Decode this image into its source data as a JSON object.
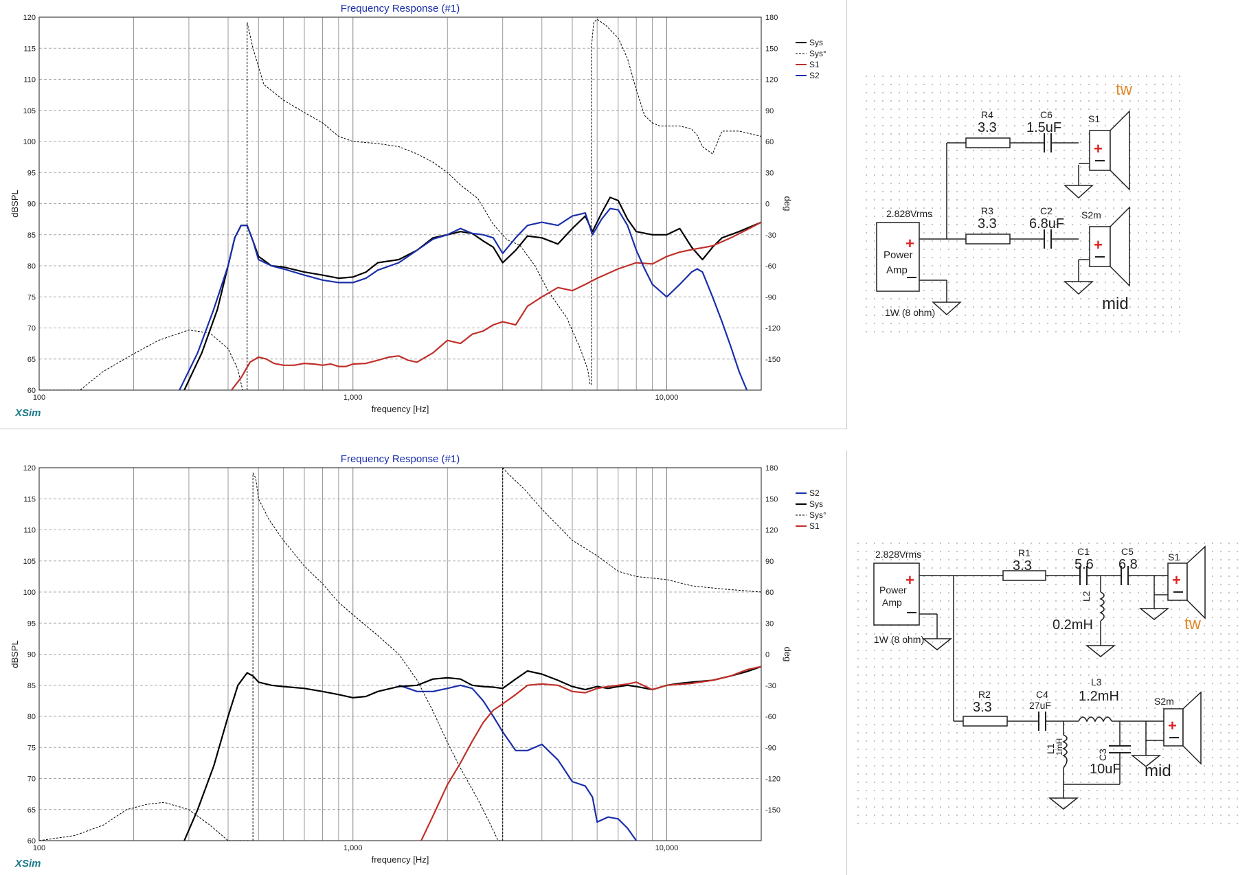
{
  "chart_data": [
    {
      "type": "line",
      "title": "Frequency Response (#1)",
      "xlabel": "frequency [Hz]",
      "ylabel": "dBSPL",
      "y2label": "deg",
      "watermark": "XSim",
      "xscale": "log",
      "xlim": [
        100,
        20000
      ],
      "ylim": [
        60,
        120
      ],
      "y2lim": [
        -180,
        180
      ],
      "xticks": [
        "100",
        "1,000",
        "10,000"
      ],
      "yticks": [
        "60",
        "65",
        "70",
        "75",
        "80",
        "85",
        "90",
        "95",
        "100",
        "105",
        "110",
        "115",
        "120"
      ],
      "y2ticks": [
        "-150",
        "-120",
        "-90",
        "-60",
        "-30",
        "0",
        "30",
        "60",
        "90",
        "120",
        "150",
        "180"
      ],
      "grid": true,
      "legend_position": "top-right",
      "legend": [
        "Sys",
        "Sys°",
        "S1",
        "S2"
      ],
      "series": [
        {
          "name": "Sys",
          "color": "#000000",
          "style": "solid",
          "axis": "left",
          "x": [
            290,
            330,
            370,
            400,
            420,
            440,
            460,
            480,
            500,
            550,
            600,
            700,
            800,
            900,
            1000,
            1100,
            1200,
            1400,
            1600,
            1800,
            2000,
            2200,
            2400,
            2600,
            2800,
            3000,
            3300,
            3600,
            4000,
            4500,
            5000,
            5500,
            5800,
            6200,
            6600,
            7000,
            7500,
            8000,
            9000,
            10000,
            11000,
            12000,
            13000,
            14000,
            15000,
            17000,
            20000
          ],
          "y": [
            60,
            66,
            73,
            80,
            84.5,
            86.5,
            86.5,
            84,
            81.5,
            80,
            79.8,
            79,
            78.5,
            78,
            78.2,
            79,
            80.5,
            81,
            82.5,
            84.5,
            85,
            85.5,
            85.2,
            84,
            83,
            80.5,
            82.5,
            84.8,
            84.5,
            83.5,
            86,
            88,
            85.5,
            88.5,
            91,
            90.5,
            87.5,
            85.5,
            85,
            85,
            86,
            83,
            81,
            83,
            84.5,
            85.5,
            87
          ]
        },
        {
          "name": "Sys°",
          "color": "#000000",
          "style": "dashed",
          "axis": "right",
          "x": [
            100,
            135,
            160,
            200,
            240,
            300,
            350,
            400,
            430,
            445,
            455,
            460,
            480,
            520,
            600,
            700,
            800,
            900,
            1000,
            1200,
            1400,
            1600,
            1800,
            2000,
            2200,
            2500,
            2800,
            3100,
            3400,
            3800,
            4200,
            4800,
            5300,
            5600,
            5700,
            5750,
            5850,
            6000,
            6400,
            7000,
            7500,
            8000,
            8500,
            9000,
            9500,
            10000,
            11000,
            12000,
            12500,
            13000,
            14000,
            15000,
            17000,
            20000
          ],
          "y": [
            -180,
            -180,
            -162,
            -145,
            -132,
            -122,
            -125,
            -140,
            -160,
            -180,
            -180,
            175,
            150,
            115,
            100,
            88,
            78,
            65,
            60,
            58,
            55,
            48,
            40,
            30,
            18,
            5,
            -20,
            -35,
            -40,
            -60,
            -85,
            -110,
            -140,
            -160,
            -175,
            150,
            175,
            178,
            172,
            160,
            140,
            110,
            85,
            78,
            75,
            75,
            75,
            72,
            66,
            55,
            48,
            70,
            70,
            65
          ]
        },
        {
          "name": "S1",
          "color": "#c0302a",
          "style": "solid",
          "axis": "left",
          "x": [
            410,
            440,
            470,
            500,
            530,
            560,
            600,
            650,
            700,
            750,
            800,
            850,
            900,
            950,
            1000,
            1100,
            1200,
            1300,
            1400,
            1500,
            1600,
            1800,
            2000,
            2200,
            2400,
            2600,
            2800,
            3000,
            3300,
            3600,
            4000,
            4500,
            5000,
            5500,
            6000,
            7000,
            8000,
            9000,
            10000,
            11000,
            12000,
            14000,
            16000,
            18000,
            20000
          ],
          "y": [
            60,
            62,
            64.5,
            65.3,
            65,
            64.3,
            64,
            64,
            64.3,
            64.2,
            64,
            64.2,
            63.8,
            63.8,
            64.2,
            64.3,
            64.8,
            65.3,
            65.5,
            64.8,
            64.5,
            66,
            68,
            67.5,
            69,
            69.5,
            70.5,
            71,
            70.5,
            73.5,
            75,
            76.5,
            76,
            77,
            78,
            79.5,
            80.5,
            80.3,
            81.5,
            82.2,
            82.6,
            83.2,
            84.5,
            85.8,
            87
          ]
        },
        {
          "name": "S2",
          "color": "#1a2faa",
          "style": "solid",
          "axis": "left",
          "x": [
            280,
            320,
            360,
            400,
            420,
            440,
            460,
            480,
            500,
            550,
            600,
            700,
            800,
            900,
            1000,
            1100,
            1200,
            1400,
            1600,
            1800,
            2000,
            2200,
            2400,
            2600,
            2800,
            3000,
            3300,
            3600,
            4000,
            4500,
            5000,
            5500,
            5800,
            6200,
            6600,
            7000,
            7500,
            8000,
            8500,
            9000,
            10000,
            11000,
            12000,
            12500,
            13000,
            14000,
            15000,
            16000,
            17000,
            18000
          ],
          "y": [
            60,
            66,
            73,
            80,
            84.5,
            86.5,
            86.5,
            84,
            81,
            80,
            79.5,
            78.5,
            77.7,
            77.3,
            77.3,
            78,
            79.3,
            80.5,
            82.5,
            84.3,
            85,
            86,
            85.2,
            85,
            84.5,
            82,
            84.5,
            86.5,
            87,
            86.5,
            88,
            88.5,
            85,
            87.5,
            89.2,
            89,
            86.5,
            82.5,
            79.5,
            77,
            75,
            77,
            79,
            79.5,
            79,
            75,
            71,
            67,
            63,
            60
          ]
        }
      ]
    },
    {
      "type": "line",
      "title": "Frequency Response (#1)",
      "xlabel": "frequency [Hz]",
      "ylabel": "dBSPL",
      "y2label": "deg",
      "watermark": "XSim",
      "xscale": "log",
      "xlim": [
        100,
        20000
      ],
      "ylim": [
        60,
        120
      ],
      "y2lim": [
        -180,
        180
      ],
      "xticks": [
        "100",
        "1,000",
        "10,000"
      ],
      "yticks": [
        "60",
        "65",
        "70",
        "75",
        "80",
        "85",
        "90",
        "95",
        "100",
        "105",
        "110",
        "115",
        "120"
      ],
      "y2ticks": [
        "-150",
        "-120",
        "-90",
        "-60",
        "-30",
        "0",
        "30",
        "60",
        "90",
        "120",
        "150",
        "180"
      ],
      "grid": true,
      "legend_position": "top-right",
      "legend": [
        "S2",
        "Sys",
        "Sys°",
        "S1"
      ],
      "series": [
        {
          "name": "S2",
          "color": "#1a2faa",
          "style": "solid",
          "axis": "left",
          "x": [
            1400,
            1500,
            1600,
            1800,
            2000,
            2200,
            2400,
            2600,
            2800,
            3000,
            3300,
            3600,
            4000,
            4500,
            5000,
            5500,
            5800,
            6000,
            6500,
            7000,
            7500,
            8000
          ],
          "y": [
            85,
            84.5,
            84,
            84,
            84.5,
            85,
            84.5,
            82.5,
            80,
            77.5,
            74.5,
            74.5,
            75.5,
            73,
            69.5,
            68.8,
            67,
            63,
            63.8,
            63.5,
            62,
            60
          ]
        },
        {
          "name": "Sys",
          "color": "#000000",
          "style": "solid",
          "axis": "left",
          "x": [
            290,
            320,
            360,
            400,
            430,
            460,
            480,
            500,
            550,
            600,
            700,
            800,
            900,
            1000,
            1100,
            1200,
            1400,
            1600,
            1800,
            2000,
            2200,
            2400,
            2600,
            2800,
            3000,
            3300,
            3600,
            4000,
            4500,
            5000,
            5500,
            6000,
            6500,
            7000,
            7500,
            8000,
            9000,
            10000,
            11000,
            12000,
            14000,
            16000,
            18000,
            20000
          ],
          "y": [
            60,
            65,
            72,
            80,
            85,
            87,
            86.5,
            85.5,
            85,
            84.8,
            84.5,
            84,
            83.5,
            83,
            83.2,
            84,
            84.8,
            85,
            86,
            86.2,
            86,
            85,
            84.8,
            84.7,
            84.5,
            86,
            87.3,
            86.8,
            85.8,
            84.8,
            84.3,
            84.8,
            84.5,
            84.8,
            85,
            84.8,
            84.3,
            85,
            85.3,
            85.5,
            85.8,
            86.5,
            87.2,
            88
          ]
        },
        {
          "name": "Sys°",
          "color": "#000000",
          "style": "dashed",
          "axis": "right",
          "x": [
            100,
            130,
            160,
            190,
            220,
            250,
            300,
            350,
            400,
            440,
            470,
            480,
            490,
            500,
            540,
            600,
            700,
            800,
            900,
            1000,
            1200,
            1400,
            1600,
            1800,
            2000,
            2200,
            2500,
            2800,
            2900,
            2950,
            3000,
            3100,
            3500,
            4000,
            5000,
            6000,
            7000,
            8000,
            10000,
            12000,
            15000,
            20000
          ],
          "y": [
            -180,
            -175,
            -165,
            -150,
            -145,
            -143,
            -150,
            -165,
            -180,
            -180,
            -180,
            175,
            170,
            150,
            130,
            110,
            85,
            68,
            50,
            38,
            18,
            0,
            -25,
            -55,
            -85,
            -110,
            -140,
            -170,
            -180,
            -180,
            180,
            175,
            160,
            140,
            110,
            95,
            80,
            75,
            72,
            66,
            63,
            60
          ]
        },
        {
          "name": "S1",
          "color": "#c0302a",
          "style": "solid",
          "axis": "left",
          "x": [
            1650,
            1800,
            2000,
            2200,
            2400,
            2600,
            2800,
            3000,
            3300,
            3600,
            4000,
            4500,
            5000,
            5500,
            6000,
            6500,
            7000,
            7500,
            8000,
            9000,
            10000,
            12000,
            14000,
            16000,
            18000,
            20000
          ],
          "y": [
            60,
            64,
            69,
            72.5,
            76,
            79,
            81,
            82,
            83.5,
            85,
            85.2,
            85,
            84,
            83.8,
            84.5,
            84.8,
            85,
            85.2,
            85.5,
            84.3,
            85,
            85.3,
            85.8,
            86.5,
            87.5,
            88
          ]
        }
      ]
    }
  ],
  "schematics": {
    "top": {
      "tw_label": "tw",
      "mid_label": "mid",
      "source_voltage": "2.828Vrms",
      "source_label_1": "Power",
      "source_label_2": "Amp",
      "source_rating": "1W (8 ohm)",
      "r4_ref": "R4",
      "r4_value": "3.3",
      "c6_ref": "C6",
      "c6_value": "1.5uF",
      "s1_ref": "S1",
      "r3_ref": "R3",
      "r3_value": "3.3",
      "c2_ref": "C2",
      "c2_value": "6.8uF",
      "s2_ref": "S2m",
      "plus": "+"
    },
    "bottom": {
      "source_voltage": "2.828Vrms",
      "source_label_1": "Power",
      "source_label_2": "Amp",
      "source_rating": "1W (8 ohm)",
      "r1_ref": "R1",
      "r1_value": "3.3",
      "c1_ref": "C1",
      "c1_value": "5.6",
      "c5_ref": "C5",
      "c5_value": "6.8",
      "s1_ref": "S1",
      "l2_ref": "L2",
      "l2_value": "0.2mH",
      "tw_label": "tw",
      "r2_ref": "R2",
      "r2_value": "3.3",
      "c4_ref": "C4",
      "c4_value": "27uF",
      "l3_ref": "L3",
      "l3_value": "1.2mH",
      "s2_ref": "S2m",
      "l1_ref": "L1",
      "l1_value": "1mH",
      "c3_ref": "C3",
      "c3_value": "10uF",
      "mid_label": "mid",
      "plus": "+"
    }
  },
  "colors": {
    "title": "#1a2faa",
    "watermark": "#1a7a8a",
    "label_orange": "#e08a2a",
    "plus_red": "#e02020",
    "grid": "#b0b0b0"
  }
}
